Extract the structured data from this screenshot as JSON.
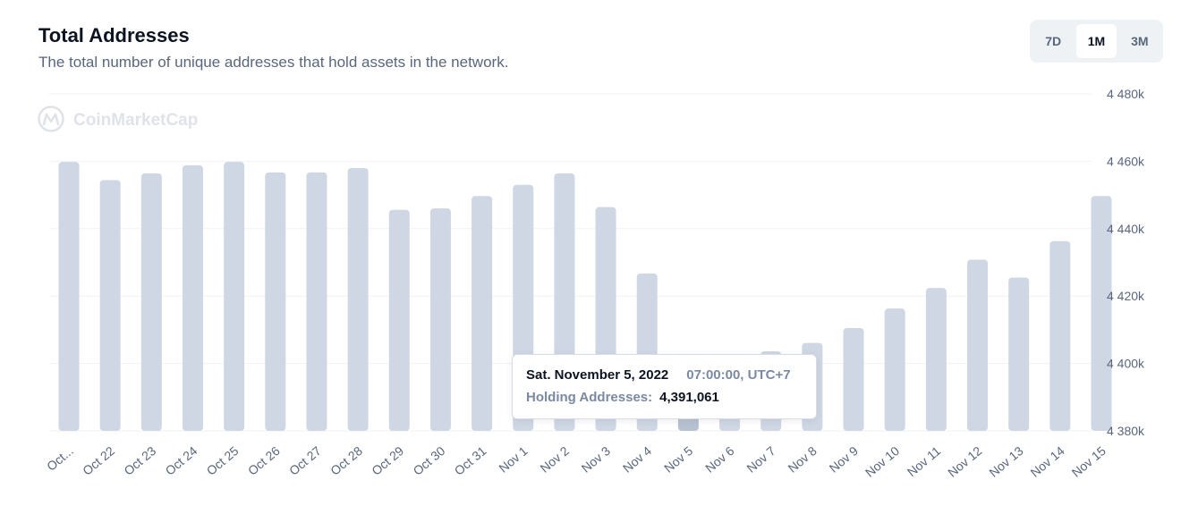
{
  "header": {
    "title": "Total Addresses",
    "subtitle": "The total number of unique addresses that hold assets in the network."
  },
  "range_buttons": [
    {
      "label": "7D",
      "active": false
    },
    {
      "label": "1M",
      "active": true
    },
    {
      "label": "3M",
      "active": false
    }
  ],
  "watermark": "CoinMarketCap",
  "tooltip": {
    "date": "Sat. November 5, 2022",
    "time": "07:00:00, UTC+7",
    "label": "Holding Addresses:",
    "value": "4,391,061"
  },
  "colors": {
    "bar": "#cfd6e4",
    "bar_highlight": "#b8c1d0",
    "grid": "#eff2f5",
    "axis_text": "#58667e"
  },
  "chart_data": {
    "type": "bar",
    "categories": [
      "Oct...",
      "Oct 22",
      "Oct 23",
      "Oct 24",
      "Oct 25",
      "Oct 26",
      "Oct 27",
      "Oct 28",
      "Oct 29",
      "Oct 30",
      "Oct 31",
      "Nov 1",
      "Nov 2",
      "Nov 3",
      "Nov 4",
      "Nov 5",
      "Nov 6",
      "Nov 7",
      "Nov 8",
      "Nov 9",
      "Nov 10",
      "Nov 11",
      "Nov 12",
      "Nov 13",
      "Nov 14",
      "Nov 15"
    ],
    "series": [
      {
        "values": [
          4459800,
          4454400,
          4456400,
          4458800,
          4459800,
          4456700,
          4456700,
          4458000,
          4445600,
          4446000,
          4449700,
          4453000,
          4456400,
          4446400,
          4426700,
          4391061,
          4397000,
          4403600,
          4406100,
          4410500,
          4416300,
          4422400,
          4430800,
          4425500,
          4436300,
          4449700
        ]
      }
    ],
    "highlight_index": 15,
    "ylim": [
      4380000,
      4480000
    ],
    "y_ticks": [
      "4 380k",
      "4 400k",
      "4 420k",
      "4 440k",
      "4 460k",
      "4 480k"
    ],
    "y_tick_values": [
      4380000,
      4400000,
      4420000,
      4440000,
      4460000,
      4480000
    ],
    "y_axis_position": "right",
    "grid": true,
    "title": "",
    "xlabel": "",
    "ylabel": ""
  }
}
